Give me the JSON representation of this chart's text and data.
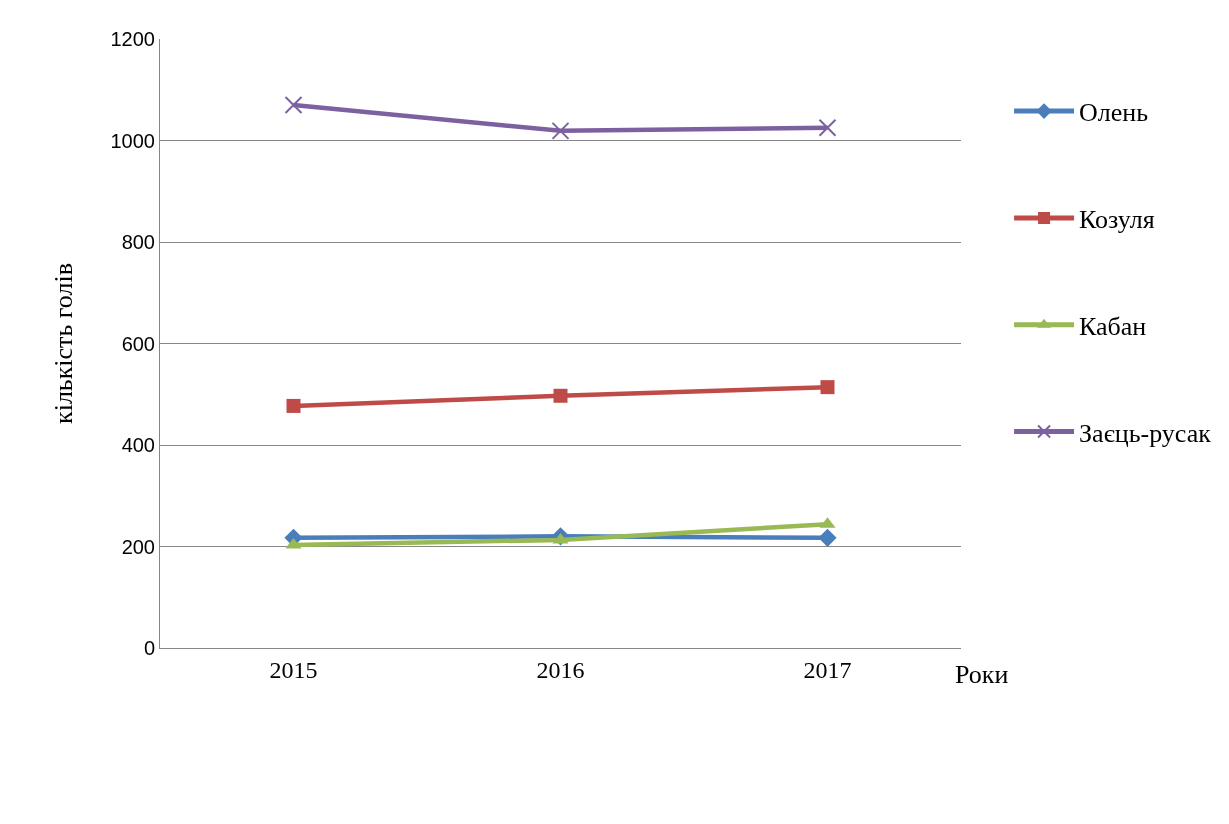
{
  "chart_data": {
    "type": "line",
    "xlabel": "Роки",
    "ylabel": "кількість голів",
    "categories": [
      "2015",
      "2016",
      "2017"
    ],
    "series": [
      {
        "name": "Олень",
        "color": "#4a7ebb",
        "marker": "diamond",
        "values": [
          217,
          220,
          217
        ]
      },
      {
        "name": "Козуля",
        "color": "#be4b48",
        "marker": "square",
        "values": [
          477,
          497,
          514
        ]
      },
      {
        "name": "Кабан",
        "color": "#98b954",
        "marker": "triangle",
        "values": [
          203,
          213,
          244
        ]
      },
      {
        "name": "Заєць-русак",
        "color": "#7d60a0",
        "marker": "cross",
        "values": [
          1070,
          1019,
          1025
        ]
      }
    ],
    "ylim": [
      0,
      1200
    ],
    "yticks": [
      0,
      200,
      400,
      600,
      800,
      1000,
      1200
    ],
    "grid": "y",
    "legend": "right"
  }
}
